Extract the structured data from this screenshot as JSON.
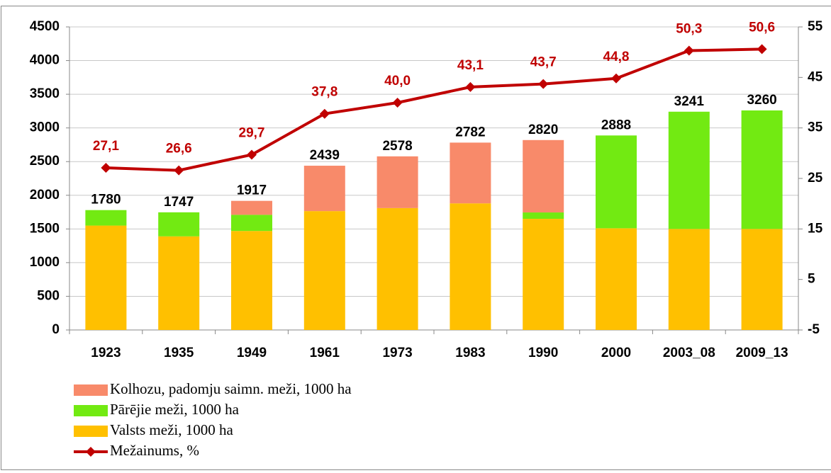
{
  "chart_data": {
    "type": "bar",
    "stacked": true,
    "categories": [
      "1923",
      "1935",
      "1949",
      "1961",
      "1973",
      "1983",
      "1990",
      "2000",
      "2003_08",
      "2009_13"
    ],
    "series": [
      {
        "name": "Valsts meži, 1000 ha",
        "color": "#FFC000",
        "values": [
          1550,
          1390,
          1470,
          1765,
          1810,
          1880,
          1650,
          1510,
          1500,
          1500
        ]
      },
      {
        "name": "Pārējie meži, 1000 ha",
        "color": "#72EA12",
        "values": [
          230,
          357,
          240,
          0,
          0,
          0,
          95,
          1378,
          1741,
          1760
        ]
      },
      {
        "name": "Kolhozu, padomju saimn. meži, 1000 ha",
        "color": "#F88A6A",
        "values": [
          0,
          0,
          207,
          674,
          768,
          902,
          1075,
          0,
          0,
          0
        ]
      },
      {
        "name": "Mežainums, %",
        "type": "line",
        "axis": "y2",
        "color": "#C00000",
        "values": [
          27.1,
          26.6,
          29.7,
          37.8,
          40.0,
          43.1,
          43.7,
          44.8,
          50.3,
          50.6
        ],
        "value_labels": [
          "27,1",
          "26,6",
          "29,7",
          "37,8",
          "40,0",
          "43,1",
          "43,7",
          "44,8",
          "50,3",
          "50,6"
        ]
      }
    ],
    "total_labels": [
      1780,
      1747,
      1917,
      2439,
      2578,
      2782,
      2820,
      2888,
      3241,
      3260
    ],
    "ylim": [
      0,
      4500
    ],
    "yticks": [
      0,
      500,
      1000,
      1500,
      2000,
      2500,
      3000,
      3500,
      4000,
      4500
    ],
    "y2lim": [
      -5,
      55
    ],
    "y2ticks": [
      -5,
      5,
      15,
      25,
      35,
      45,
      55
    ],
    "grid": true
  }
}
